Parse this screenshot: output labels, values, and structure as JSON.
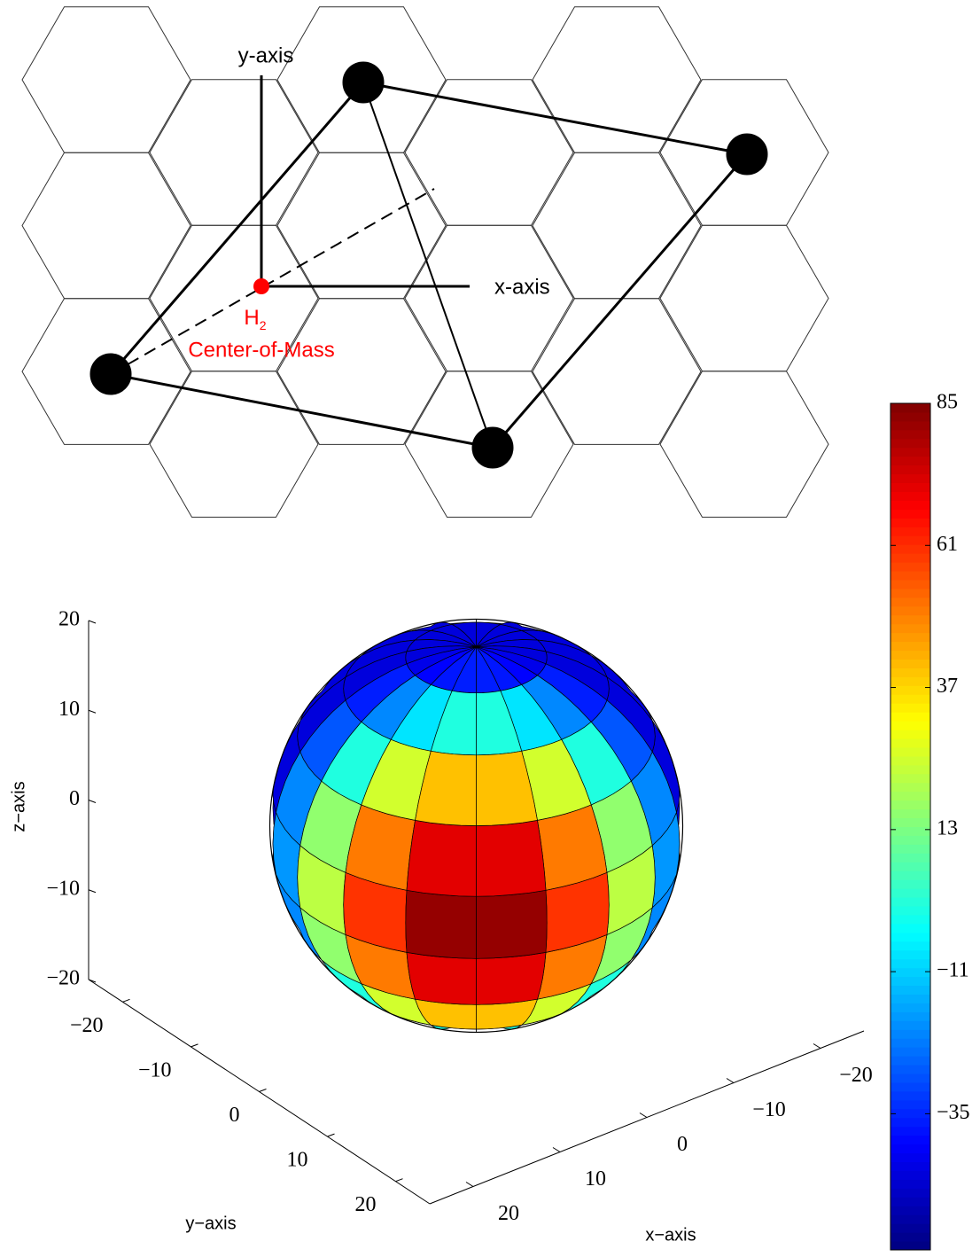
{
  "diagram": {
    "y_axis_label": "y-axis",
    "x_axis_label": "x-axis",
    "com_label": {
      "species": "H",
      "subscript": "2",
      "text": "Center-of-Mass"
    }
  },
  "chart_data": {
    "type": "surface",
    "xlabel": "x−axis",
    "ylabel": "y−axis",
    "zlabel": "z−axis",
    "xlim": [
      -25,
      25
    ],
    "ylim": [
      -25,
      25
    ],
    "zlim": [
      -20,
      20
    ],
    "xticks": [
      {
        "value": -20,
        "label": "−20"
      },
      {
        "value": -10,
        "label": "−10"
      },
      0,
      10,
      20
    ],
    "yticks": [
      {
        "value": -20,
        "label": "−20"
      },
      {
        "value": -10,
        "label": "−10"
      },
      0,
      10,
      20
    ],
    "zticks": [
      {
        "value": -20,
        "label": "−20"
      },
      {
        "value": -10,
        "label": "−10"
      },
      0,
      10,
      20
    ],
    "lat_edges": [
      90,
      70,
      50,
      30,
      10,
      -10,
      -30,
      -50,
      -70,
      -90
    ],
    "lon_edges": [
      -180,
      -160,
      -140,
      -120,
      -100,
      -80,
      -60,
      -40,
      -20,
      0,
      20,
      40,
      60,
      80,
      100,
      120,
      140,
      160,
      180
    ],
    "values": [
      [
        -45,
        -45,
        -45,
        -45,
        -45,
        -43,
        -40,
        -37,
        -36,
        -36,
        -37,
        -40,
        -43,
        -45,
        -45,
        -45,
        -45,
        -45
      ],
      [
        -45,
        -45,
        -45,
        -45,
        -45,
        -36,
        -21,
        -8,
        0,
        0,
        -8,
        -21,
        -36,
        -45,
        -45,
        -45,
        -45,
        -45
      ],
      [
        -45,
        -45,
        -45,
        -45,
        -45,
        -28,
        0,
        25,
        40,
        40,
        25,
        0,
        -28,
        -45,
        -45,
        -45,
        -45,
        -45
      ],
      [
        -45,
        -45,
        -45,
        -45,
        -45,
        -21,
        16,
        50,
        71,
        71,
        50,
        16,
        -21,
        -45,
        -45,
        -45,
        -45,
        -45
      ],
      [
        -45,
        -45,
        -45,
        -45,
        -45,
        -19,
        22,
        60,
        82,
        82,
        60,
        22,
        -19,
        -45,
        -45,
        -45,
        -45,
        -45
      ],
      [
        -45,
        -45,
        -45,
        -45,
        -45,
        -21,
        16,
        50,
        71,
        71,
        50,
        16,
        -21,
        -45,
        -45,
        -45,
        -45,
        -45
      ],
      [
        -45,
        -45,
        -45,
        -45,
        -45,
        -28,
        0,
        25,
        40,
        40,
        25,
        0,
        -28,
        -45,
        -45,
        -45,
        -45,
        -45
      ],
      [
        -45,
        -45,
        -45,
        -45,
        -45,
        -36,
        -21,
        -8,
        0,
        0,
        -8,
        -21,
        -36,
        -45,
        -45,
        -45,
        -45,
        -45
      ],
      [
        -45,
        -45,
        -45,
        -45,
        -45,
        -43,
        -40,
        -37,
        -36,
        -36,
        -37,
        -40,
        -43,
        -45,
        -45,
        -45,
        -45,
        -45
      ]
    ],
    "colormap": "jet",
    "clim": [
      -58,
      85
    ],
    "cticks": [
      {
        "value": -35,
        "label": "−35"
      },
      {
        "value": -11,
        "label": "−11"
      },
      13,
      37,
      61,
      85
    ]
  }
}
